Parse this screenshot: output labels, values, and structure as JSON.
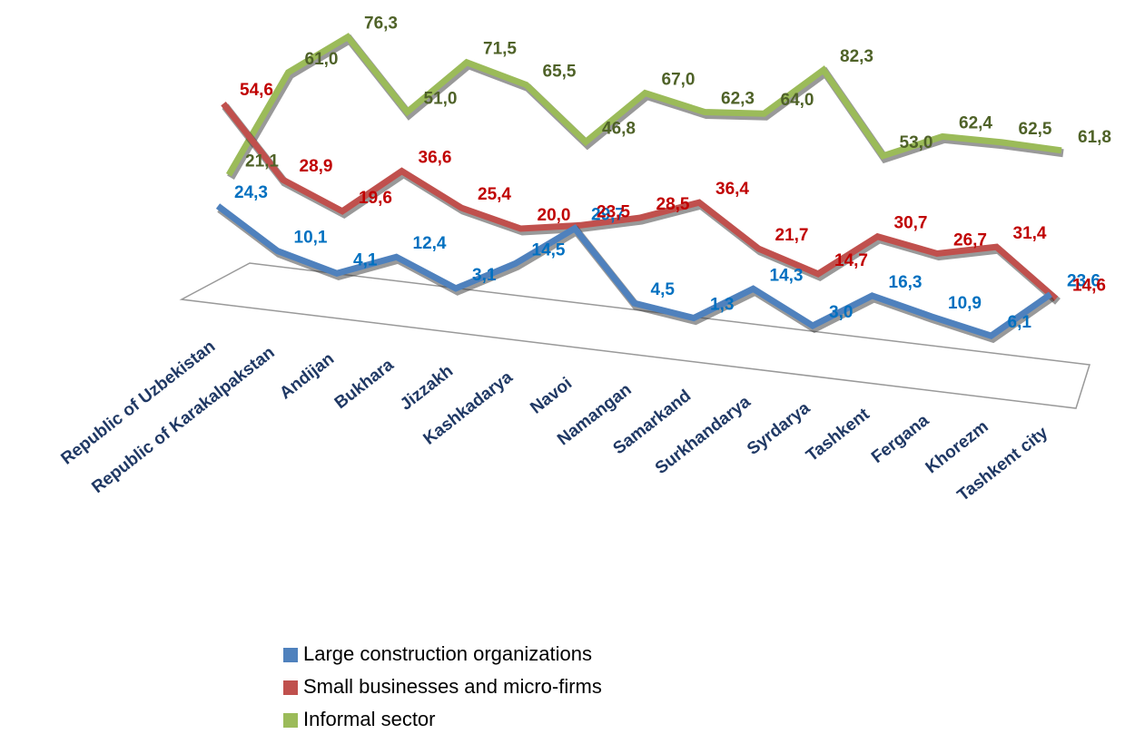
{
  "chart_data": {
    "type": "line",
    "categories": [
      "Republic of Uzbekistan",
      "Republic of Karakalpakstan",
      "Andijan",
      "Bukhara",
      "Jizzakh",
      "Kashkadarya",
      "Navoi",
      "Namangan",
      "Samarkand",
      "Surkhandarya",
      "Syrdarya",
      "Tashkent",
      "Fergana",
      "Khorezm",
      "Tashkent city"
    ],
    "series": [
      {
        "name": "Large construction organizations",
        "color": "#4f81bd",
        "label_color": "#0070c0",
        "values": [
          24.3,
          10.1,
          4.1,
          12.4,
          3.1,
          14.5,
          29.7,
          4.5,
          1.3,
          14.3,
          3.0,
          16.3,
          10.9,
          6.1,
          23.6
        ],
        "value_labels": [
          "24,3",
          "10,1",
          "4,1",
          "12,4",
          "3,1",
          "14,5",
          "29,7",
          "4,5",
          "1,3",
          "14,3",
          "3,0",
          "16,3",
          "10,9",
          "6,1",
          "23,6"
        ]
      },
      {
        "name": "Small businesses and micro-firms",
        "color": "#c0504d",
        "label_color": "#c00000",
        "values": [
          54.6,
          28.9,
          19.6,
          36.6,
          25.4,
          20.0,
          23.5,
          28.5,
          36.4,
          21.7,
          14.7,
          30.7,
          26.7,
          31.4,
          14.6
        ],
        "value_labels": [
          "54,6",
          "28,9",
          "19,6",
          "36,6",
          "25,4",
          "20,0",
          "23,5",
          "28,5",
          "36,4",
          "21,7",
          "14,7",
          "30,7",
          "26,7",
          "31,4",
          "14,6"
        ]
      },
      {
        "name": "Informal sector",
        "color": "#9bbb59",
        "label_color": "#4f6228",
        "values": [
          21.1,
          61.0,
          76.3,
          51.0,
          71.5,
          65.5,
          46.8,
          67.0,
          62.3,
          64.0,
          82.3,
          53.0,
          62.4,
          62.5,
          61.8
        ],
        "value_labels": [
          "21,1",
          "61,0",
          "76,3",
          "51,0",
          "71,5",
          "65,5",
          "46,8",
          "67,0",
          "62,3",
          "64,0",
          "82,3",
          "53,0",
          "62,4",
          "62,5",
          "61,8"
        ]
      }
    ]
  }
}
